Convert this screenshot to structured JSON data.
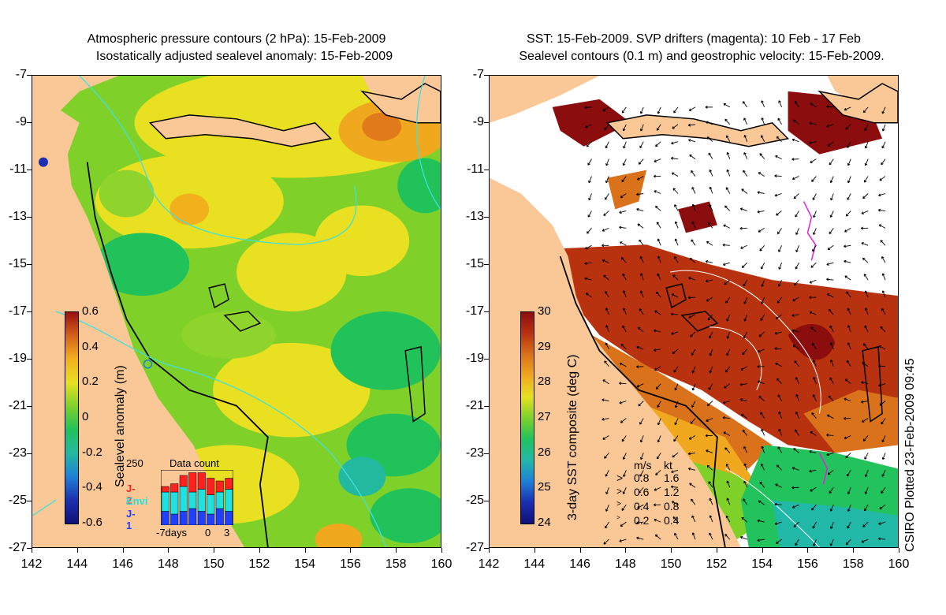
{
  "left_panel": {
    "title_line1": "Atmospheric pressure contours (2 hPa): 15-Feb-2009",
    "title_line2": "Isostatically adjusted sealevel anomaly: 15-Feb-2009",
    "colorbar": {
      "label": "Sealevel anomaly (m)",
      "ticks": [
        "0.6",
        "0.4",
        "0.2",
        "0",
        "-0.2",
        "-0.4",
        "-0.6"
      ],
      "colors": [
        "#9b0f0f",
        "#d4621a",
        "#f2b01c",
        "#e8e020",
        "#7fd12a",
        "#21c25a",
        "#23b9a0",
        "#1f80d8",
        "#1d2fb0",
        "#10107a"
      ]
    },
    "data_count": {
      "title": "Data count",
      "ymax": "250",
      "missions": [
        {
          "name": "J-2",
          "color": "#ff2020"
        },
        {
          "name": "Envi",
          "color": "#20e0e0"
        },
        {
          "name": "J-1",
          "color": "#2040ff"
        }
      ],
      "xlabels": [
        "-7days",
        "0",
        "3"
      ],
      "bars": [
        {
          "j1": 0.25,
          "envi": 0.35,
          "j2": 0.1
        },
        {
          "j1": 0.2,
          "envi": 0.4,
          "j2": 0.15
        },
        {
          "j1": 0.25,
          "envi": 0.45,
          "j2": 0.2
        },
        {
          "j1": 0.3,
          "envi": 0.3,
          "j2": 0.35
        },
        {
          "j1": 0.25,
          "envi": 0.4,
          "j2": 0.3
        },
        {
          "j1": 0.2,
          "envi": 0.35,
          "j2": 0.3
        },
        {
          "j1": 0.3,
          "envi": 0.3,
          "j2": 0.2
        },
        {
          "j1": 0.25,
          "envi": 0.4,
          "j2": 0.2
        }
      ]
    }
  },
  "right_panel": {
    "title_line1": "SST: 15-Feb-2009. SVP drifters (magenta): 10 Feb - 17 Feb",
    "title_line2": "Sealevel contours (0.1 m) and geostrophic velocity: 15-Feb-2009.",
    "colorbar": {
      "label": "3-day SST composite (deg C)",
      "ticks": [
        "30",
        "29",
        "28",
        "27",
        "26",
        "25",
        "24"
      ],
      "colors": [
        "#8b0d0d",
        "#b8320f",
        "#d9721a",
        "#f0a81e",
        "#e6e022",
        "#7fd12a",
        "#22c25c",
        "#22b8a8",
        "#1f7fd8",
        "#1b2eb0",
        "#0f0f78"
      ]
    },
    "velocity_legend": {
      "header_ms": "m/s",
      "header_kt": "kt",
      "rows": [
        {
          "ms": "0.8",
          "kt": "1.6"
        },
        {
          "ms": "0.6",
          "kt": "1.2"
        },
        {
          "ms": "0.4",
          "kt": "0.8"
        },
        {
          "ms": "0.2",
          "kt": "0.4"
        }
      ]
    }
  },
  "axes": {
    "yticks": [
      "-7",
      "-9",
      "-11",
      "-13",
      "-15",
      "-17",
      "-19",
      "-21",
      "-23",
      "-25",
      "-27"
    ],
    "xticks": [
      "142",
      "144",
      "146",
      "148",
      "150",
      "152",
      "154",
      "156",
      "158",
      "160"
    ]
  },
  "footer": "CSIRO Plotted 23-Feb-2009 09:45",
  "colors": {
    "land": "#f9c896",
    "sla_bg": "#7fd12a",
    "cloud": "#ffffff"
  }
}
